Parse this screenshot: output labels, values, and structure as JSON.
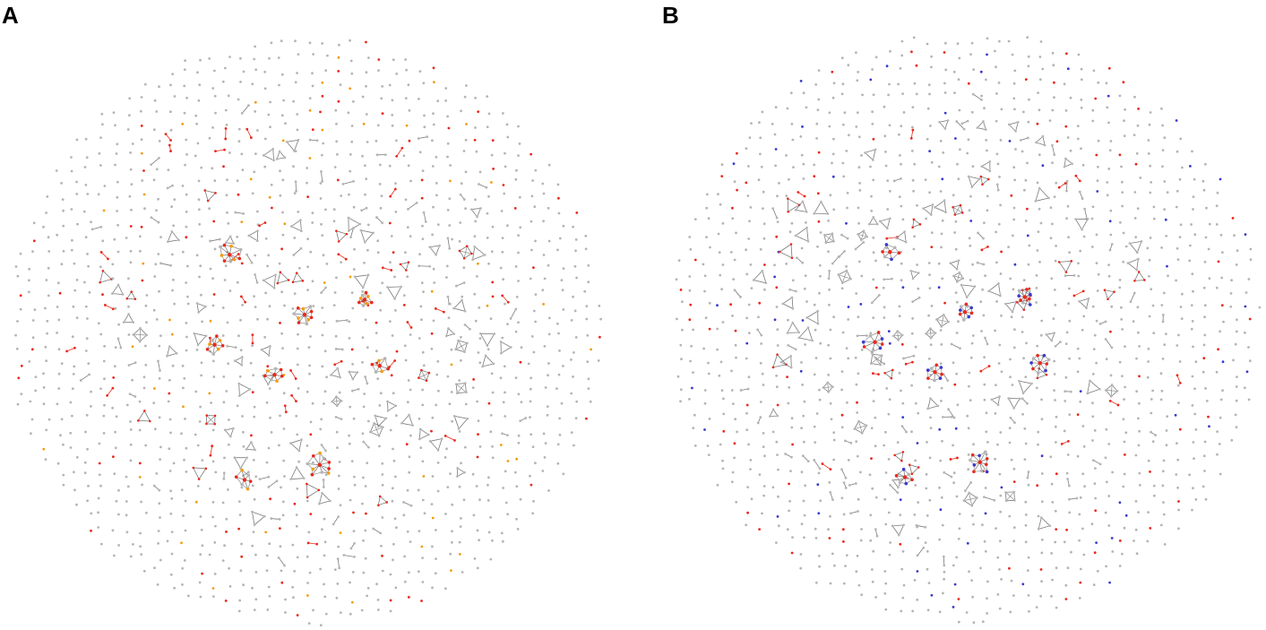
{
  "panels": [
    {
      "label": "A",
      "highlight_colors": [
        "#e8291c",
        "#f39c12"
      ]
    },
    {
      "label": "B",
      "highlight_colors": [
        "#e8291c",
        "#3a3acc"
      ]
    }
  ],
  "colors": {
    "background_node": "#b5b5b5",
    "edge": "#7a7a7a",
    "red": "#e8291c",
    "orange": "#f39c12",
    "blue": "#3a3acc"
  }
}
